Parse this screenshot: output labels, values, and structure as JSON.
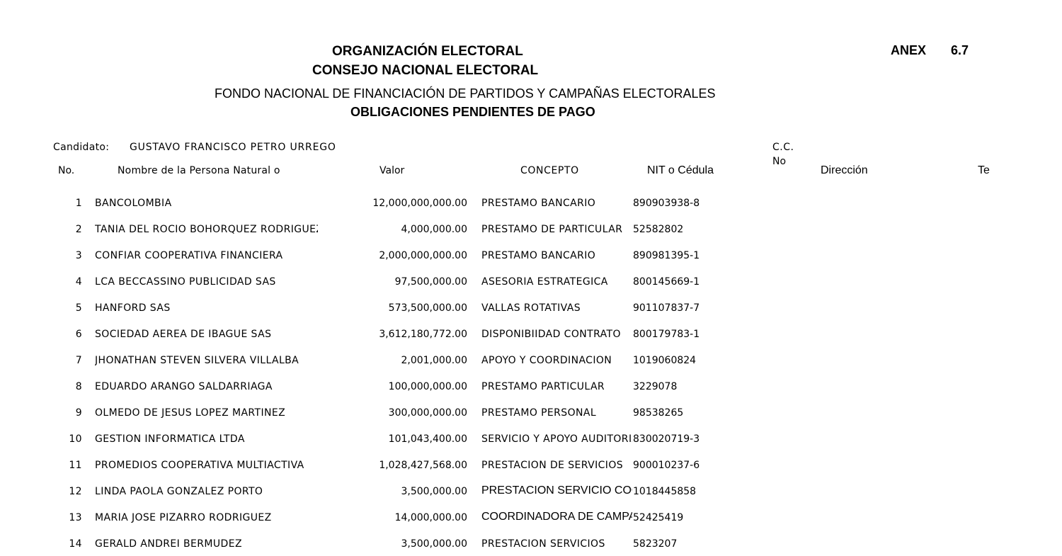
{
  "header": {
    "org": "ORGANIZACIÓN ELECTORAL",
    "council": "CONSEJO NACIONAL ELECTORAL",
    "fund": "FONDO NACIONAL DE FINANCIACIÓN DE PARTIDOS Y CAMPAÑAS ELECTORALES",
    "report": "OBLIGACIONES PENDIENTES DE PAGO",
    "annex_label": "ANEX",
    "annex_number": "6.7"
  },
  "candidate": {
    "label": "Candidato:",
    "name": "GUSTAVO FRANCISCO PETRO URREGO",
    "cc_label": "C.C.",
    "cc_no_label": "No"
  },
  "columns": {
    "no": "No.",
    "name": "Nombre de la Persona Natural o",
    "value": "Valor",
    "concept": "CONCEPTO",
    "nit": "NIT o Cédula",
    "address": "Dirección",
    "phone": "Te"
  },
  "rows": [
    {
      "no": "1",
      "name": "BANCOLOMBIA",
      "value": "12,000,000,000.00",
      "concept": "PRESTAMO BANCARIO",
      "nit": "890903938-8"
    },
    {
      "no": "2",
      "name": "TANIA DEL ROCIO BOHORQUEZ RODRIGUEZ",
      "value": "4,000,000.00",
      "concept": "PRESTAMO DE PARTICULAR",
      "nit": "52582802"
    },
    {
      "no": "3",
      "name": "CONFIAR COOPERATIVA FINANCIERA",
      "value": "2,000,000,000.00",
      "concept": "PRESTAMO BANCARIO",
      "nit": "890981395-1"
    },
    {
      "no": "4",
      "name": "LCA BECCASSINO PUBLICIDAD SAS",
      "value": "97,500,000.00",
      "concept": "ASESORIA ESTRATEGICA",
      "nit": "800145669-1"
    },
    {
      "no": "5",
      "name": "HANFORD SAS",
      "value": "573,500,000.00",
      "concept": "VALLAS ROTATIVAS",
      "nit": "901107837-7"
    },
    {
      "no": "6",
      "name": "SOCIEDAD AEREA DE IBAGUE SAS",
      "value": "3,612,180,772.00",
      "concept": "DISPONIBIIDAD CONTRATO",
      "nit": "800179783-1"
    },
    {
      "no": "7",
      "name": "JHONATHAN STEVEN SILVERA  VILLALBA",
      "value": "2,001,000.00",
      "concept": "APOYO Y COORDINACION",
      "nit": "1019060824"
    },
    {
      "no": "8",
      "name": "EDUARDO ARANGO SALDARRIAGA",
      "value": "100,000,000.00",
      "concept": "PRESTAMO PARTICULAR",
      "nit": "3229078"
    },
    {
      "no": "9",
      "name": "OLMEDO DE JESUS LOPEZ MARTINEZ",
      "value": "300,000,000.00",
      "concept": "PRESTAMO PERSONAL",
      "nit": "98538265"
    },
    {
      "no": "10",
      "name": "GESTION INFORMATICA LTDA",
      "value": "101,043,400.00",
      "concept": "SERVICIO Y APOYO AUDITORIA",
      "nit": "830020719-3"
    },
    {
      "no": "11",
      "name": "PROMEDIOS COOPERATIVA MULTIACTIVA",
      "value": "1,028,427,568.00",
      "concept": "PRESTACION DE SERVICIOS",
      "nit": "900010237-6"
    },
    {
      "no": "12",
      "name": "LINDA PAOLA GONZALEZ PORTO",
      "value": "3,500,000.00",
      "concept": "PRESTACION SERVICIO COORDINACION",
      "nit": "1018445858",
      "alt_font": true
    },
    {
      "no": "13",
      "name": "MARIA JOSE PIZARRO RODRIGUEZ",
      "value": "14,000,000.00",
      "concept": "COORDINADORA DE CAMPAÑA",
      "nit": "52425419",
      "alt_font": true
    },
    {
      "no": "14",
      "name": "GERALD ANDREI BERMUDEZ",
      "value": "3,500,000.00",
      "concept": "PRESTACION SERVICIOS",
      "nit": "5823207"
    }
  ]
}
